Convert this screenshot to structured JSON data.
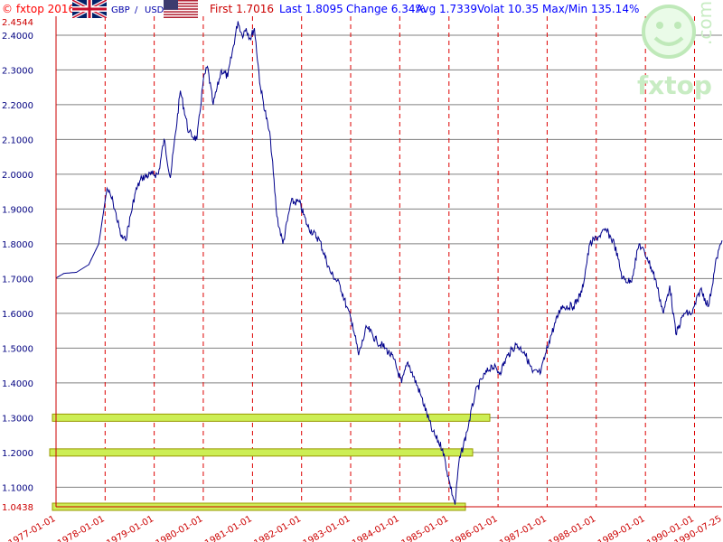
{
  "header": {
    "copyright": "© fxtop 2016",
    "pair_base": "GBP",
    "pair_sep": "/",
    "pair_quote": "USD",
    "first": "First  1.7016",
    "last": "Last  1.8095",
    "change": "Change 6.34%",
    "avg": "Avg 1.7339",
    "volat": "Volat  10.35",
    "maxmin": "Max/Min 135.14%"
  },
  "logo": {
    "brand": "fxtop",
    "tld": ".com"
  },
  "colors": {
    "line": "#00008b",
    "grid_red": "#dd0000",
    "highlight": "#ccee55",
    "highlight_border": "#999900"
  },
  "chart_data": {
    "type": "line",
    "title": "",
    "xlabel": "",
    "ylabel": "",
    "ylim": [
      1.0438,
      2.4544
    ],
    "y_max_label": "2.4544",
    "y_min_label": "1.0438",
    "y_ticks": [
      "2.4000",
      "2.3000",
      "2.2000",
      "2.1000",
      "2.0000",
      "1.9000",
      "1.8000",
      "1.7000",
      "1.6000",
      "1.5000",
      "1.4000",
      "1.3000",
      "1.2000",
      "1.1000"
    ],
    "x_ticks": [
      "1977-01-01",
      "1978-01-01",
      "1979-01-01",
      "1980-01-01",
      "1981-01-01",
      "1982-01-01",
      "1983-01-01",
      "1984-01-01",
      "1985-01-01",
      "1986-01-01",
      "1987-01-01",
      "1988-01-01",
      "1989-01-01",
      "1990-01-01",
      "1990-07-25"
    ],
    "highlight_levels": [
      1.3,
      1.2,
      1.0438
    ],
    "series": [
      {
        "points": [
          [
            "1977-01-01",
            1.7016
          ],
          [
            "1977-03-01",
            1.715
          ],
          [
            "1977-06-01",
            1.718
          ],
          [
            "1977-09-01",
            1.74
          ],
          [
            "1977-11-15",
            1.8
          ],
          [
            "1978-01-15",
            1.96
          ],
          [
            "1978-03-01",
            1.92
          ],
          [
            "1978-05-01",
            1.82
          ],
          [
            "1978-06-01",
            1.81
          ],
          [
            "1978-08-15",
            1.95
          ],
          [
            "1978-10-01",
            1.99
          ],
          [
            "1978-12-15",
            2.0
          ],
          [
            "1979-02-01",
            2.0
          ],
          [
            "1979-03-15",
            2.1
          ],
          [
            "1979-05-01",
            1.99
          ],
          [
            "1979-07-15",
            2.24
          ],
          [
            "1979-09-15",
            2.12
          ],
          [
            "1979-11-15",
            2.1
          ],
          [
            "1980-01-01",
            2.27
          ],
          [
            "1980-02-01",
            2.31
          ],
          [
            "1980-03-15",
            2.2
          ],
          [
            "1980-05-15",
            2.3
          ],
          [
            "1980-07-01",
            2.28
          ],
          [
            "1980-09-15",
            2.44
          ],
          [
            "1980-10-15",
            2.4
          ],
          [
            "1980-11-15",
            2.42
          ],
          [
            "1980-12-15",
            2.39
          ],
          [
            "1981-01-15",
            2.42
          ],
          [
            "1981-03-01",
            2.25
          ],
          [
            "1981-05-15",
            2.1
          ],
          [
            "1981-07-01",
            1.88
          ],
          [
            "1981-08-15",
            1.8
          ],
          [
            "1981-10-15",
            1.92
          ],
          [
            "1981-12-15",
            1.92
          ],
          [
            "1982-02-15",
            1.85
          ],
          [
            "1982-05-15",
            1.81
          ],
          [
            "1982-08-01",
            1.72
          ],
          [
            "1982-10-15",
            1.68
          ],
          [
            "1982-12-01",
            1.62
          ],
          [
            "1983-01-15",
            1.57
          ],
          [
            "1983-03-01",
            1.48
          ],
          [
            "1983-05-01",
            1.56
          ],
          [
            "1983-07-15",
            1.52
          ],
          [
            "1983-09-15",
            1.5
          ],
          [
            "1983-11-15",
            1.47
          ],
          [
            "1984-01-15",
            1.4
          ],
          [
            "1984-03-01",
            1.46
          ],
          [
            "1984-06-01",
            1.37
          ],
          [
            "1984-09-01",
            1.26
          ],
          [
            "1984-11-15",
            1.21
          ],
          [
            "1985-01-01",
            1.12
          ],
          [
            "1985-02-15",
            1.05
          ],
          [
            "1985-03-15",
            1.17
          ],
          [
            "1985-05-15",
            1.26
          ],
          [
            "1985-07-15",
            1.37
          ],
          [
            "1985-09-01",
            1.41
          ],
          [
            "1985-11-15",
            1.45
          ],
          [
            "1986-01-15",
            1.43
          ],
          [
            "1986-03-15",
            1.48
          ],
          [
            "1986-05-15",
            1.51
          ],
          [
            "1986-07-15",
            1.49
          ],
          [
            "1986-09-15",
            1.43
          ],
          [
            "1986-11-15",
            1.43
          ],
          [
            "1987-01-15",
            1.52
          ],
          [
            "1987-04-15",
            1.62
          ],
          [
            "1987-07-15",
            1.62
          ],
          [
            "1987-09-15",
            1.66
          ],
          [
            "1987-11-15",
            1.8
          ],
          [
            "1988-01-15",
            1.82
          ],
          [
            "1988-03-15",
            1.84
          ],
          [
            "1988-05-15",
            1.8
          ],
          [
            "1988-07-15",
            1.7
          ],
          [
            "1988-09-15",
            1.69
          ],
          [
            "1988-11-15",
            1.8
          ],
          [
            "1989-01-15",
            1.76
          ],
          [
            "1989-03-15",
            1.7
          ],
          [
            "1989-05-15",
            1.6
          ],
          [
            "1989-07-01",
            1.68
          ],
          [
            "1989-08-15",
            1.54
          ],
          [
            "1989-10-15",
            1.6
          ],
          [
            "1989-12-15",
            1.6
          ],
          [
            "1990-02-15",
            1.67
          ],
          [
            "1990-04-15",
            1.62
          ],
          [
            "1990-06-15",
            1.76
          ],
          [
            "1990-07-25",
            1.8095
          ]
        ]
      }
    ]
  }
}
